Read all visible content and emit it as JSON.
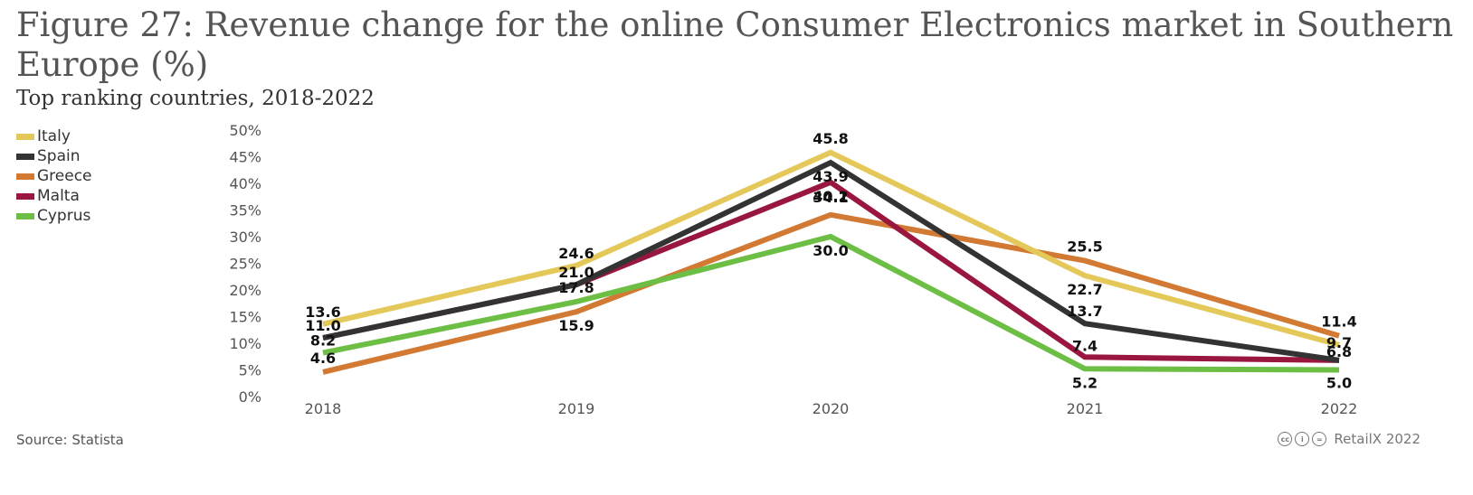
{
  "title": "Figure 27: Revenue change for the online Consumer Electronics market in Southern Europe (%)",
  "subtitle": "Top ranking countries, 2018-2022",
  "source": "Source: Statista",
  "credit": "RetailX 2022",
  "chart_data": {
    "type": "line",
    "categories": [
      "2018",
      "2019",
      "2020",
      "2021",
      "2022"
    ],
    "ylim": [
      0,
      50
    ],
    "yticks": [
      "0%",
      "5%",
      "10%",
      "15%",
      "20%",
      "25%",
      "30%",
      "35%",
      "40%",
      "45%",
      "50%"
    ],
    "grid": false,
    "legend_position": "top-left",
    "series": [
      {
        "name": "Italy",
        "color": "#e5c85a",
        "values": [
          13.6,
          24.6,
          45.8,
          22.7,
          9.7
        ]
      },
      {
        "name": "Spain",
        "color": "#333333",
        "values": [
          11.0,
          21.0,
          43.9,
          13.7,
          6.8
        ]
      },
      {
        "name": "Greece",
        "color": "#d27a33",
        "values": [
          4.6,
          15.9,
          34.1,
          25.5,
          11.4
        ]
      },
      {
        "name": "Malta",
        "color": "#99173f",
        "values": [
          11.0,
          21.0,
          40.2,
          7.4,
          6.8
        ]
      },
      {
        "name": "Cyprus",
        "color": "#6dbe45",
        "values": [
          8.2,
          17.8,
          30.0,
          5.2,
          5.0
        ]
      }
    ],
    "data_labels": [
      {
        "series": "Italy",
        "index": 0,
        "text": "13.6"
      },
      {
        "series": "Spain",
        "index": 0,
        "text": "11.0"
      },
      {
        "series": "Cyprus",
        "index": 0,
        "text": "8.2"
      },
      {
        "series": "Greece",
        "index": 0,
        "text": "4.6"
      },
      {
        "series": "Italy",
        "index": 1,
        "text": "24.6"
      },
      {
        "series": "Spain",
        "index": 1,
        "text": "21.0"
      },
      {
        "series": "Cyprus",
        "index": 1,
        "text": "17.8"
      },
      {
        "series": "Greece",
        "index": 1,
        "text": "15.9"
      },
      {
        "series": "Italy",
        "index": 2,
        "text": "45.8"
      },
      {
        "series": "Spain",
        "index": 2,
        "text": "43.9"
      },
      {
        "series": "Malta",
        "index": 2,
        "text": "40.2"
      },
      {
        "series": "Greece",
        "index": 2,
        "text": "34.1"
      },
      {
        "series": "Cyprus",
        "index": 2,
        "text": "30.0"
      },
      {
        "series": "Greece",
        "index": 3,
        "text": "25.5"
      },
      {
        "series": "Italy",
        "index": 3,
        "text": "22.7"
      },
      {
        "series": "Spain",
        "index": 3,
        "text": "13.7"
      },
      {
        "series": "Malta",
        "index": 3,
        "text": "7.4"
      },
      {
        "series": "Cyprus",
        "index": 3,
        "text": "5.2"
      },
      {
        "series": "Greece",
        "index": 4,
        "text": "11.4"
      },
      {
        "series": "Italy",
        "index": 4,
        "text": "9.7"
      },
      {
        "series": "Spain",
        "index": 4,
        "text": "6.8"
      },
      {
        "series": "Cyprus",
        "index": 4,
        "text": "5.0"
      }
    ]
  }
}
